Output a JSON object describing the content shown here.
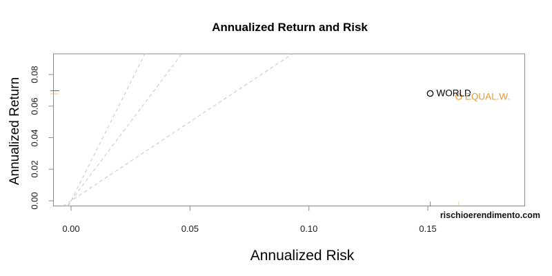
{
  "chart_data": {
    "type": "scatter",
    "title": "Annualized Return and Risk",
    "xlabel": "Annualized Risk",
    "ylabel": "Annualized Return",
    "x_ticks": [
      0,
      0.05,
      0.1,
      0.15
    ],
    "x_tick_labels": [
      "0.00",
      "0.05",
      "0.10",
      "0.15"
    ],
    "y_ticks": [
      0,
      0.02,
      0.04,
      0.06,
      0.08
    ],
    "y_tick_labels": [
      "0.00",
      "0.02",
      "0.04",
      "0.06",
      "0.08"
    ],
    "xlim": [
      -0.0075,
      0.1907
    ],
    "ylim": [
      -0.0033,
      0.0931
    ],
    "grid": false,
    "legend": "none",
    "points": [
      {
        "label": "WORLD",
        "risk": 0.151,
        "return": 0.068,
        "color": "#000000",
        "marker": "open-circle"
      },
      {
        "label": "EQUAL.W.",
        "risk": 0.163,
        "return": 0.066,
        "color": "#ED9B2E",
        "marker": "open-circle"
      }
    ],
    "reference_lines": {
      "description": "sharpe-ratio lines through origin",
      "slopes": [
        3,
        2,
        1
      ],
      "intercept": 0,
      "style": "dashed",
      "color": "#C4C4C4"
    },
    "axis_rug_marks": true,
    "watermark": "rischioerendimento.com"
  },
  "colors": {
    "background": "#FFFFFF",
    "axis": "#8A8A8A",
    "text": "#000000",
    "accent_orange": "#ED9B2E",
    "dashed_line": "#C4C4C4"
  }
}
